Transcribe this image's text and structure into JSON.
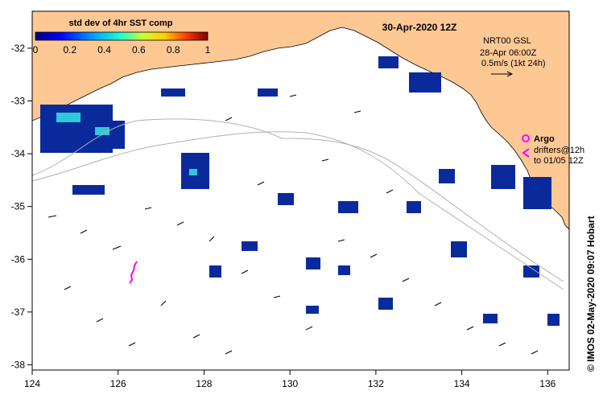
{
  "map": {
    "date_title": "30-Apr-2020 12Z",
    "colorbar": {
      "title": "std dev of 4hr SST comp",
      "ticks": [
        "0",
        "0.2",
        "0.4",
        "0.6",
        "0.8",
        "1"
      ],
      "range": [
        0,
        1
      ]
    },
    "current_legend": {
      "line1": "NRT00 GSL",
      "line2": "28-Apr 06:00Z",
      "line3": "0.5m/s (1kt 24h)"
    },
    "argo_legend": {
      "argo_label": "Argo",
      "drifters_line1": "drifters@12h",
      "drifters_line2": "to 01/05 12Z"
    },
    "credit": "© IMOS 02-May-2020 09:07 Hobart",
    "lon_ticks": [
      "124",
      "126",
      "128",
      "130",
      "132",
      "134",
      "136"
    ],
    "lat_ticks": [
      "-32",
      "-33",
      "-34",
      "-35",
      "-36",
      "-37",
      "-38"
    ],
    "colors": {
      "land": "#fec894",
      "ocean": "#ffffff",
      "sst_low": "#0a2a9c",
      "sst_mid": "#2ec8d8",
      "drifter": "#ff00ff",
      "contour": "#b0b0b0"
    }
  }
}
